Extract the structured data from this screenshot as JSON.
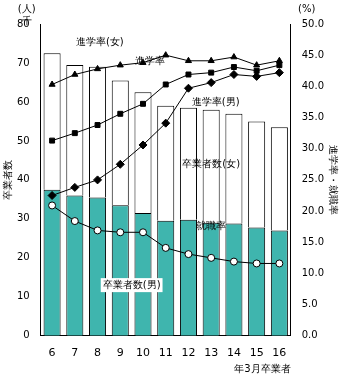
{
  "chart_data": {
    "type": "bar",
    "categories": [
      "6",
      "7",
      "8",
      "9",
      "10",
      "11",
      "12",
      "13",
      "14",
      "15",
      "16"
    ],
    "x_label": "年3月卒業者",
    "y_label": "卒業者数",
    "y2_label": "進学率・就職率",
    "y_unit": [
      "(人)",
      "千"
    ],
    "y2_unit": "(%)",
    "stacked": true,
    "grid": false,
    "ylim": [
      0,
      80
    ],
    "yticks": [
      0,
      10,
      20,
      30,
      40,
      50,
      60,
      70,
      80
    ],
    "y2lim": [
      0,
      50
    ],
    "y2ticks": [
      {
        "value": 0,
        "label": "0.0"
      },
      {
        "value": 5,
        "label": "5.0"
      },
      {
        "value": 10,
        "label": "10.0"
      },
      {
        "value": 15,
        "label": "15.0"
      },
      {
        "value": 20,
        "label": "20.0"
      },
      {
        "value": 25,
        "label": "25.0"
      },
      {
        "value": 30,
        "label": "30.0"
      },
      {
        "value": 35,
        "label": "35.0"
      },
      {
        "value": 40,
        "label": "40.0"
      },
      {
        "value": 45,
        "label": "45.0"
      },
      {
        "value": 50,
        "label": "50.0"
      }
    ],
    "series": [
      {
        "name": "卒業者数(男)",
        "type": "bar",
        "color": "#3fb5ae",
        "values": [
          37.5,
          36,
          35.5,
          33.5,
          31.5,
          29.5,
          29.8,
          29,
          28.8,
          27.8,
          27
        ]
      },
      {
        "name": "卒業者数(女)",
        "type": "bar",
        "color": "#ffffff",
        "values": [
          35,
          33.5,
          33.5,
          32,
          31,
          29.5,
          28.7,
          29,
          28.2,
          27.2,
          26.5
        ]
      },
      {
        "name": "進学率(女)",
        "type": "line",
        "axis": "y2",
        "color": "#000000",
        "marker": "triangle",
        "values": [
          40.3,
          41.9,
          42.8,
          43.4,
          43.8,
          45.0,
          44.1,
          44.1,
          44.7,
          43.4,
          44.1
        ]
      },
      {
        "name": "進学率",
        "type": "line",
        "axis": "y2",
        "color": "#000000",
        "marker": "square",
        "values": [
          31.3,
          32.5,
          33.8,
          35.6,
          37.2,
          40.3,
          41.9,
          42.2,
          43.1,
          42.5,
          43.4
        ]
      },
      {
        "name": "進学率(男)",
        "type": "line",
        "axis": "y2",
        "color": "#000000",
        "marker": "diamond",
        "values": [
          22.5,
          23.8,
          25.0,
          27.5,
          30.6,
          34.1,
          39.7,
          40.6,
          41.9,
          41.6,
          42.2
        ]
      },
      {
        "name": "就職率",
        "type": "line",
        "axis": "y2",
        "color": "#000000",
        "marker": "circle",
        "values": [
          20.9,
          18.4,
          16.9,
          16.6,
          16.6,
          14.1,
          13.1,
          12.5,
          11.9,
          11.6,
          11.6
        ]
      }
    ]
  }
}
